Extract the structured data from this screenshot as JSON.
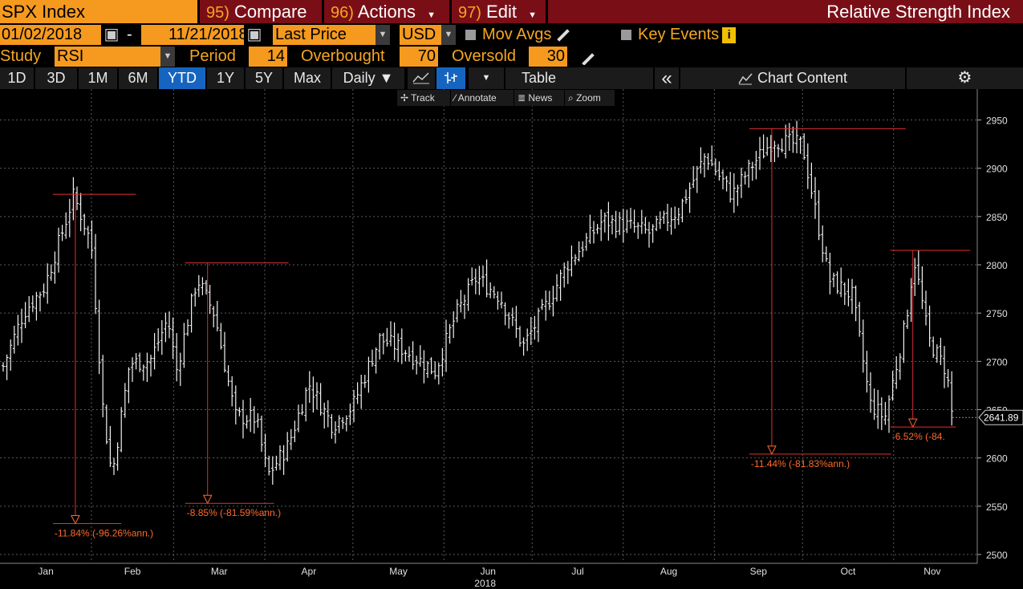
{
  "header": {
    "ticker": "SPX Index",
    "compare_num": "95)",
    "compare_label": "Compare",
    "actions_num": "96)",
    "actions_label": "Actions",
    "edit_num": "97)",
    "edit_label": "Edit",
    "title": "Relative Strength Index"
  },
  "controls": {
    "start_date": "01/02/2018",
    "dash": "-",
    "end_date": "11/21/2018",
    "price_field": "Last Price",
    "currency": "USD",
    "mov_avgs_label": "Mov Avgs",
    "key_events_label": "Key Events",
    "info_glyph": "i",
    "study_label": "Study",
    "study_value": "RSI",
    "period_label": "Period",
    "period_value": "14",
    "overbought_label": "Overbought",
    "overbought_value": "70",
    "oversold_label": "Oversold",
    "oversold_value": "30"
  },
  "toolbar": {
    "ranges": [
      "1D",
      "3D",
      "1M",
      "6M",
      "YTD",
      "1Y",
      "5Y",
      "Max"
    ],
    "selected_range": "YTD",
    "frequency": "Daily ▼",
    "table_label": "Table",
    "collapse_glyph": "«",
    "chart_content_label": "Chart Content",
    "gear_glyph": "⚙",
    "track_label": "Track",
    "annotate_label": "Annotate",
    "news_label": "News",
    "zoom_label": "Zoom"
  },
  "colors": {
    "orange": "#f59a1e",
    "dark_red": "#7a0e17",
    "selected": "#1565c0",
    "annotation": "#e03030",
    "annotation_text": "#ff6a2a"
  },
  "icons": [
    "calendar-icon",
    "dropdown-arrow-icon",
    "pencil-icon",
    "info-icon",
    "line-chart-icon",
    "bar-chart-icon",
    "gear-icon",
    "crosshair-icon"
  ],
  "chart_data": {
    "type": "bar",
    "title": "",
    "x_axis_year": "2018",
    "month_labels": [
      "Jan",
      "Feb",
      "Mar",
      "Apr",
      "May",
      "Jun",
      "Jul",
      "Aug",
      "Sep",
      "Oct",
      "Nov"
    ],
    "y_ticks": [
      2500,
      2550,
      2600,
      2650,
      2700,
      2750,
      2800,
      2850,
      2900,
      2950
    ],
    "ylim": [
      2490,
      2975
    ],
    "last_price_label": "2641.89",
    "last_price": 2641.89,
    "grid": true,
    "ohlc_closes": [
      {
        "x": "2018-01-02",
        "close": 2695
      },
      {
        "x": "2018-01-09",
        "close": 2751
      },
      {
        "x": "2018-01-16",
        "close": 2777
      },
      {
        "x": "2018-01-22",
        "close": 2833
      },
      {
        "x": "2018-01-26",
        "close": 2872
      },
      {
        "x": "2018-02-01",
        "close": 2822
      },
      {
        "x": "2018-02-05",
        "close": 2649
      },
      {
        "x": "2018-02-08",
        "close": 2581
      },
      {
        "x": "2018-02-14",
        "close": 2698
      },
      {
        "x": "2018-02-21",
        "close": 2701
      },
      {
        "x": "2018-02-27",
        "close": 2744
      },
      {
        "x": "2018-03-02",
        "close": 2691
      },
      {
        "x": "2018-03-09",
        "close": 2786
      },
      {
        "x": "2018-03-15",
        "close": 2748
      },
      {
        "x": "2018-03-22",
        "close": 2643
      },
      {
        "x": "2018-03-29",
        "close": 2641
      },
      {
        "x": "2018-04-02",
        "close": 2582
      },
      {
        "x": "2018-04-09",
        "close": 2613
      },
      {
        "x": "2018-04-16",
        "close": 2677
      },
      {
        "x": "2018-04-24",
        "close": 2634
      },
      {
        "x": "2018-05-01",
        "close": 2654
      },
      {
        "x": "2018-05-10",
        "close": 2723
      },
      {
        "x": "2018-05-18",
        "close": 2713
      },
      {
        "x": "2018-05-29",
        "close": 2690
      },
      {
        "x": "2018-06-05",
        "close": 2748
      },
      {
        "x": "2018-06-12",
        "close": 2787
      },
      {
        "x": "2018-06-20",
        "close": 2767
      },
      {
        "x": "2018-06-28",
        "close": 2716
      },
      {
        "x": "2018-07-06",
        "close": 2759
      },
      {
        "x": "2018-07-13",
        "close": 2801
      },
      {
        "x": "2018-07-25",
        "close": 2846
      },
      {
        "x": "2018-08-03",
        "close": 2840
      },
      {
        "x": "2018-08-10",
        "close": 2833
      },
      {
        "x": "2018-08-20",
        "close": 2857
      },
      {
        "x": "2018-08-29",
        "close": 2914
      },
      {
        "x": "2018-09-07",
        "close": 2872
      },
      {
        "x": "2018-09-14",
        "close": 2904
      },
      {
        "x": "2018-09-21",
        "close": 2929
      },
      {
        "x": "2018-10-01",
        "close": 2924
      },
      {
        "x": "2018-10-10",
        "close": 2785
      },
      {
        "x": "2018-10-18",
        "close": 2768
      },
      {
        "x": "2018-10-24",
        "close": 2656
      },
      {
        "x": "2018-10-29",
        "close": 2641
      },
      {
        "x": "2018-11-05",
        "close": 2738
      },
      {
        "x": "2018-11-08",
        "close": 2806
      },
      {
        "x": "2018-11-13",
        "close": 2722
      },
      {
        "x": "2018-11-19",
        "close": 2690
      },
      {
        "x": "2018-11-21",
        "close": 2641.89
      }
    ],
    "annotations": [
      {
        "label": "-11.84% (-96.26%ann.)",
        "from_x": "2018-01-26",
        "to_x": "2018-02-09",
        "from_y": 2873,
        "to_y": 2532
      },
      {
        "label": "-8.85% (-81.59%ann.)",
        "from_x": "2018-03-12",
        "to_x": "2018-04-02",
        "from_y": 2802,
        "to_y": 2553
      },
      {
        "label": "-11.44% (-81.83%ann.)",
        "from_x": "2018-09-20",
        "to_x": "2018-10-29",
        "from_y": 2941,
        "to_y": 2604
      },
      {
        "label": "-6.52% (-84.",
        "from_x": "2018-11-07",
        "to_x": "2018-11-20",
        "from_y": 2815,
        "to_y": 2632
      }
    ]
  }
}
